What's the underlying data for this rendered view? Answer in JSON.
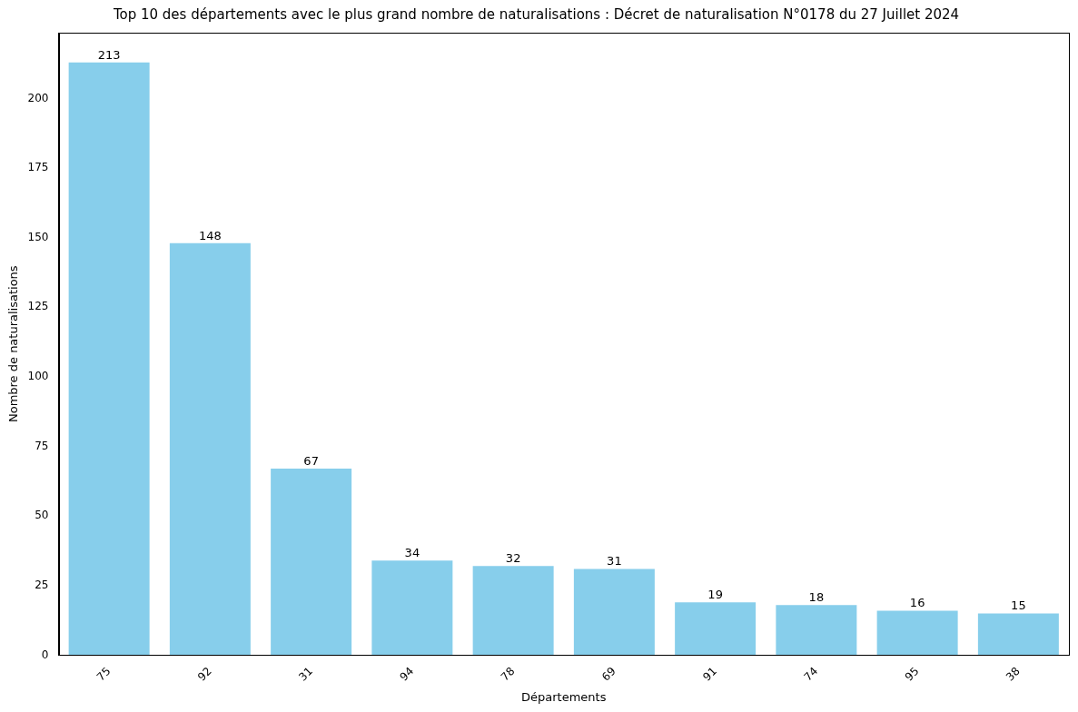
{
  "chart_data": {
    "type": "bar",
    "title": "Top 10 des départements avec le plus grand nombre de naturalisations : Décret de naturalisation N°0178 du 27 Juillet 2024",
    "x_label": "Départements",
    "y_label": "Nombre de naturalisations",
    "categories": [
      "75",
      "92",
      "31",
      "94",
      "78",
      "69",
      "91",
      "74",
      "95",
      "38"
    ],
    "values": [
      213,
      148,
      67,
      34,
      32,
      31,
      19,
      18,
      16,
      15
    ],
    "color": "#87ceeb",
    "ylim": [
      0,
      223.65
    ],
    "yticks": [
      0,
      25,
      50,
      75,
      100,
      125,
      150,
      175,
      200
    ],
    "grid": false,
    "data_labels": true
  }
}
